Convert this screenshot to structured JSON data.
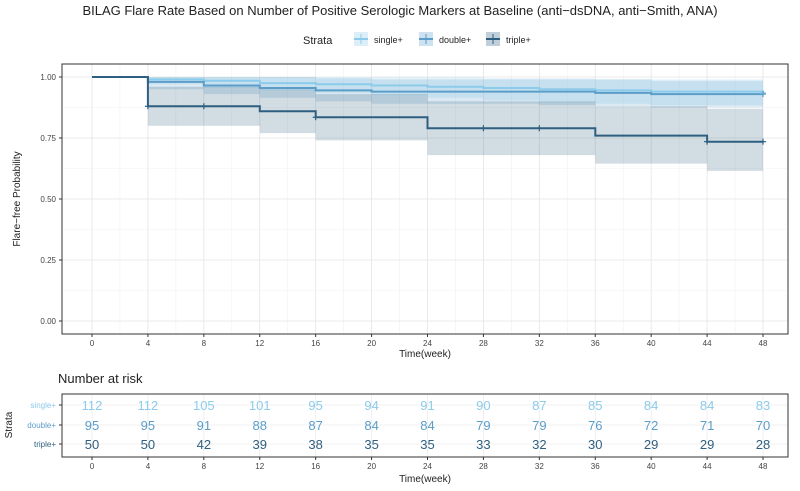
{
  "chart_data": {
    "type": "line",
    "subtype": "kaplan-meier-step",
    "title": "BILAG Flare Rate Based on Number of Positive Serologic Markers at Baseline (anti−dsDNA, anti−Smith, ANA)",
    "xlabel": "Time(week)",
    "ylabel": "Flare−free Probability",
    "xlim": [
      0,
      48
    ],
    "ylim": [
      0,
      1
    ],
    "x_ticks": [
      0,
      4,
      8,
      12,
      16,
      20,
      24,
      28,
      32,
      36,
      40,
      44,
      48
    ],
    "y_ticks": [
      "0.00",
      "0.25",
      "0.50",
      "0.75",
      "1.00"
    ],
    "y_tick_values": [
      0,
      0.25,
      0.5,
      0.75,
      1.0
    ],
    "grid": true,
    "legend": {
      "title": "Strata",
      "position": "top"
    },
    "series": [
      {
        "name": "single+",
        "color": "#8ccbea",
        "steps": [
          [
            0,
            1.0
          ],
          [
            4,
            0.99
          ],
          [
            8,
            0.985
          ],
          [
            12,
            0.975
          ],
          [
            16,
            0.97
          ],
          [
            20,
            0.965
          ],
          [
            24,
            0.96
          ],
          [
            28,
            0.955
          ],
          [
            32,
            0.95
          ],
          [
            36,
            0.945
          ],
          [
            40,
            0.94
          ],
          [
            48,
            0.935
          ]
        ],
        "lower": [
          [
            0,
            1.0
          ],
          [
            4,
            0.97
          ],
          [
            8,
            0.955
          ],
          [
            12,
            0.945
          ],
          [
            16,
            0.935
          ],
          [
            20,
            0.925
          ],
          [
            24,
            0.915
          ],
          [
            28,
            0.905
          ],
          [
            32,
            0.895
          ],
          [
            36,
            0.89
          ],
          [
            40,
            0.885
          ],
          [
            48,
            0.88
          ]
        ],
        "upper": [
          [
            0,
            1.0
          ],
          [
            4,
            1.0
          ],
          [
            8,
            1.0
          ],
          [
            12,
            1.0
          ],
          [
            16,
            1.0
          ],
          [
            20,
            1.0
          ],
          [
            24,
            1.0
          ],
          [
            28,
            0.995
          ],
          [
            32,
            0.995
          ],
          [
            36,
            0.99
          ],
          [
            40,
            0.99
          ],
          [
            48,
            0.985
          ]
        ],
        "censor_x": [
          48
        ]
      },
      {
        "name": "double+",
        "color": "#5b9dc9",
        "steps": [
          [
            0,
            1.0
          ],
          [
            4,
            0.98
          ],
          [
            8,
            0.965
          ],
          [
            12,
            0.955
          ],
          [
            16,
            0.945
          ],
          [
            20,
            0.94
          ],
          [
            24,
            0.94
          ],
          [
            28,
            0.94
          ],
          [
            32,
            0.94
          ],
          [
            36,
            0.935
          ],
          [
            40,
            0.93
          ],
          [
            48,
            0.93
          ]
        ],
        "lower": [
          [
            0,
            1.0
          ],
          [
            4,
            0.95
          ],
          [
            8,
            0.93
          ],
          [
            12,
            0.915
          ],
          [
            16,
            0.9
          ],
          [
            20,
            0.89
          ],
          [
            24,
            0.89
          ],
          [
            28,
            0.89
          ],
          [
            32,
            0.885
          ],
          [
            36,
            0.88
          ],
          [
            40,
            0.875
          ],
          [
            48,
            0.87
          ]
        ],
        "upper": [
          [
            0,
            1.0
          ],
          [
            4,
            1.0
          ],
          [
            8,
            1.0
          ],
          [
            12,
            1.0
          ],
          [
            16,
            0.995
          ],
          [
            20,
            0.99
          ],
          [
            24,
            0.99
          ],
          [
            28,
            0.99
          ],
          [
            32,
            0.99
          ],
          [
            36,
            0.99
          ],
          [
            40,
            0.985
          ],
          [
            48,
            0.985
          ]
        ],
        "censor_x": [
          48
        ]
      },
      {
        "name": "triple+",
        "color": "#2f5f80",
        "steps": [
          [
            0,
            1.0
          ],
          [
            4,
            0.88
          ],
          [
            8,
            0.88
          ],
          [
            12,
            0.86
          ],
          [
            16,
            0.835
          ],
          [
            20,
            0.835
          ],
          [
            24,
            0.79
          ],
          [
            28,
            0.79
          ],
          [
            32,
            0.79
          ],
          [
            36,
            0.76
          ],
          [
            40,
            0.76
          ],
          [
            44,
            0.735
          ],
          [
            48,
            0.735
          ]
        ],
        "lower": [
          [
            0,
            1.0
          ],
          [
            4,
            0.8
          ],
          [
            8,
            0.8
          ],
          [
            12,
            0.77
          ],
          [
            16,
            0.74
          ],
          [
            20,
            0.74
          ],
          [
            24,
            0.68
          ],
          [
            28,
            0.68
          ],
          [
            32,
            0.68
          ],
          [
            36,
            0.645
          ],
          [
            40,
            0.645
          ],
          [
            44,
            0.615
          ],
          [
            48,
            0.615
          ]
        ],
        "upper": [
          [
            0,
            1.0
          ],
          [
            4,
            0.96
          ],
          [
            8,
            0.96
          ],
          [
            12,
            0.95
          ],
          [
            16,
            0.93
          ],
          [
            20,
            0.93
          ],
          [
            24,
            0.9
          ],
          [
            28,
            0.9
          ],
          [
            32,
            0.9
          ],
          [
            36,
            0.88
          ],
          [
            40,
            0.88
          ],
          [
            44,
            0.87
          ],
          [
            48,
            0.87
          ]
        ],
        "censor_x": [
          4,
          8,
          16,
          28,
          32,
          44,
          48
        ]
      }
    ],
    "risk_table": {
      "title": "Number at risk",
      "ylabel": "Strata",
      "xlabel": "Time(week)",
      "x_ticks": [
        0,
        4,
        8,
        12,
        16,
        20,
        24,
        28,
        32,
        36,
        40,
        44,
        48
      ],
      "tick_x": [
        0,
        4,
        8,
        12,
        16,
        20,
        24,
        28,
        32,
        36,
        40,
        44,
        48
      ],
      "rows": [
        {
          "name": "single+",
          "color": "#8ccbea",
          "values": [
            112,
            112,
            105,
            101,
            95,
            94,
            91,
            90,
            87,
            85,
            84,
            84,
            83
          ]
        },
        {
          "name": "double+",
          "color": "#5b9dc9",
          "values": [
            95,
            95,
            91,
            88,
            87,
            84,
            84,
            79,
            79,
            76,
            72,
            71,
            70
          ]
        },
        {
          "name": "triple+",
          "color": "#2f5f80",
          "values": [
            50,
            50,
            42,
            39,
            38,
            35,
            35,
            33,
            32,
            30,
            29,
            29,
            28
          ]
        }
      ]
    }
  }
}
